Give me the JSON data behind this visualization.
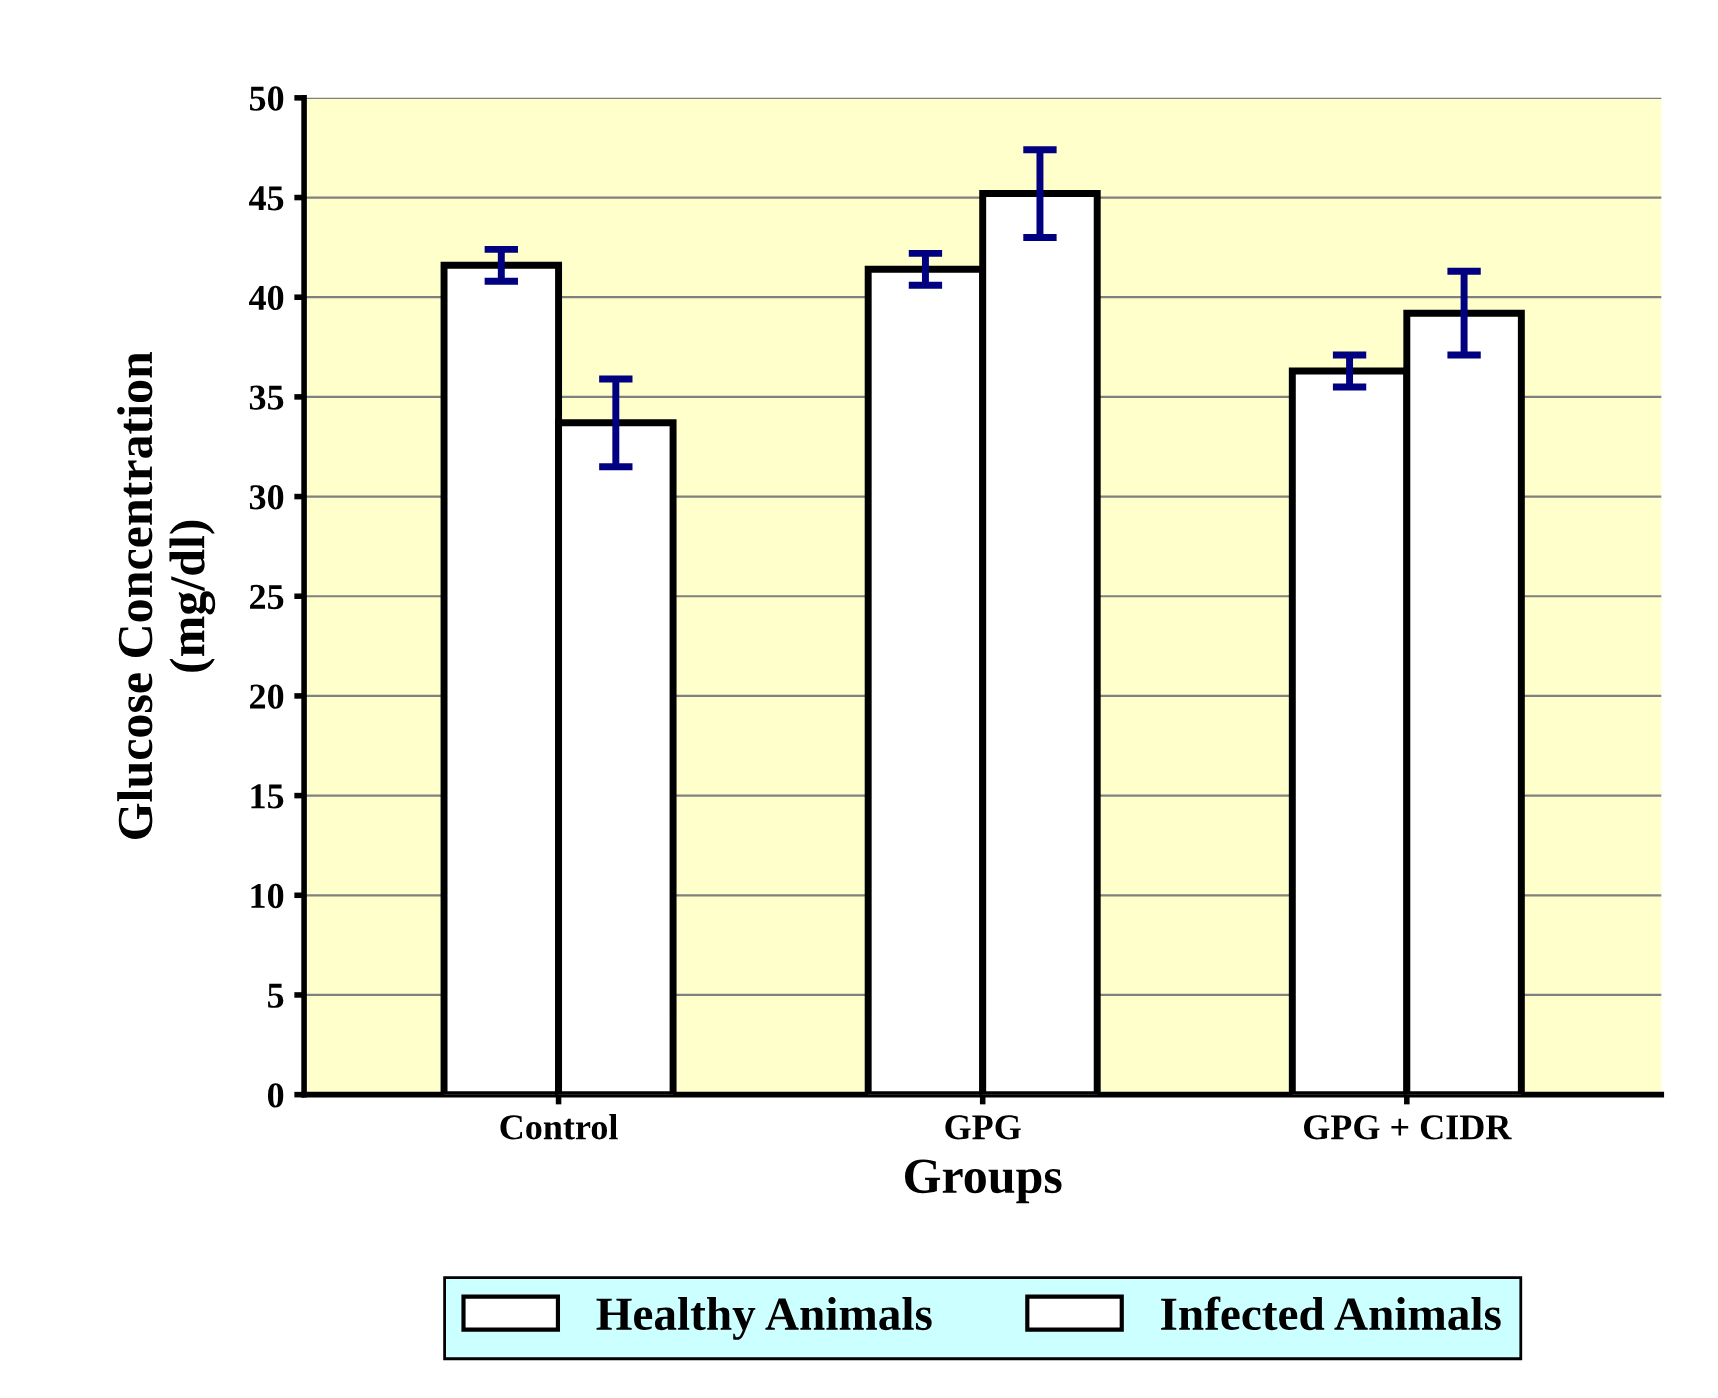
{
  "chart_data": {
    "type": "bar",
    "xlabel": "Groups",
    "ylabel": "Glucose Concentration\n(mg/dl)",
    "categories": [
      "Control",
      "GPG",
      "GPG + CIDR"
    ],
    "series": [
      {
        "name": "Healthy Animals",
        "color": "#ffffff",
        "values": [
          41.6,
          41.4,
          36.3
        ],
        "errors": [
          0.8,
          0.8,
          0.8
        ]
      },
      {
        "name": "Infected Animals",
        "color": "#ffffff",
        "values": [
          33.7,
          45.2,
          39.2
        ],
        "errors": [
          2.2,
          2.2,
          2.1
        ]
      }
    ],
    "ylim": [
      0,
      50
    ],
    "yticks": [
      0,
      5,
      10,
      15,
      20,
      25,
      30,
      35,
      40,
      45,
      50
    ],
    "grid": "y",
    "legend": "bottom"
  }
}
